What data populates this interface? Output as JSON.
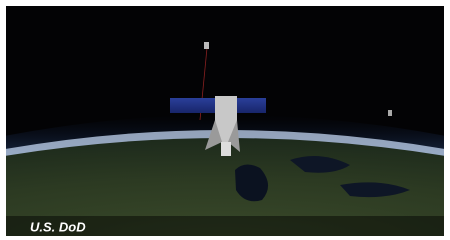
{
  "caption": "U.S. DoD"
}
